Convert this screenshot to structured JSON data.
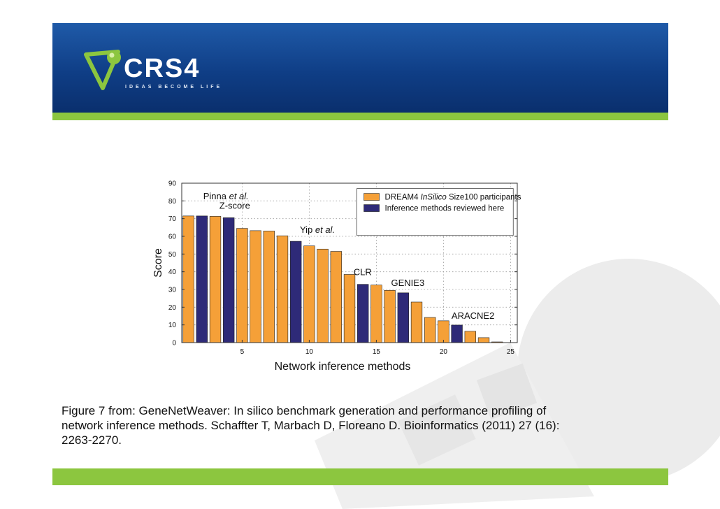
{
  "brand": {
    "logo_text": "CRS4",
    "tagline": "IDEAS BECOME LIFE",
    "colors": {
      "banner": "#124592",
      "green": "#8cc63f",
      "watermark": "#e9e9e9"
    }
  },
  "caption": {
    "lines": [
      "Figure 7 from: GeneNetWeaver: In silico benchmark generation and performance profiling of",
      "network inference methods. Schaffter T, Marbach D, Floreano D. Bioinformatics (2011) 27 (16):",
      "2263-2270."
    ]
  },
  "chart_data": {
    "type": "bar",
    "xlabel": "Network inference methods",
    "ylabel": "Score",
    "xlim": [
      0.5,
      25.5
    ],
    "ylim": [
      0,
      90
    ],
    "xticks": [
      5,
      10,
      15,
      20,
      25
    ],
    "yticks": [
      0,
      10,
      20,
      30,
      40,
      50,
      60,
      70,
      80,
      90
    ],
    "grid": "dotted",
    "legend_position": "top-right",
    "series": [
      {
        "name": "DREAM4 InSilico Size100 participants",
        "color": "#f5a038"
      },
      {
        "name": "Inference methods reviewed here",
        "color": "#2e2a78"
      }
    ],
    "legend": [
      {
        "parts": [
          "DREAM4 ",
          "InSilico",
          " Size100 participants"
        ],
        "italic": [
          false,
          true,
          false
        ],
        "series": 0
      },
      {
        "parts": [
          "Inference methods reviewed here"
        ],
        "italic": [
          false
        ],
        "series": 1
      }
    ],
    "bars": [
      {
        "x": 1,
        "value": 71.5,
        "series": 0
      },
      {
        "x": 2,
        "value": 71.5,
        "series": 1
      },
      {
        "x": 3,
        "value": 71.3,
        "series": 0
      },
      {
        "x": 4,
        "value": 70.5,
        "series": 1
      },
      {
        "x": 5,
        "value": 64.5,
        "series": 0
      },
      {
        "x": 6,
        "value": 63.2,
        "series": 0
      },
      {
        "x": 7,
        "value": 63.0,
        "series": 0
      },
      {
        "x": 8,
        "value": 60.3,
        "series": 0
      },
      {
        "x": 9,
        "value": 57.2,
        "series": 1
      },
      {
        "x": 10,
        "value": 54.6,
        "series": 0
      },
      {
        "x": 11,
        "value": 52.8,
        "series": 0
      },
      {
        "x": 12,
        "value": 51.5,
        "series": 0
      },
      {
        "x": 13,
        "value": 38.5,
        "series": 0
      },
      {
        "x": 14,
        "value": 32.9,
        "series": 1
      },
      {
        "x": 15,
        "value": 32.5,
        "series": 0
      },
      {
        "x": 16,
        "value": 29.5,
        "series": 0
      },
      {
        "x": 17,
        "value": 28.1,
        "series": 1
      },
      {
        "x": 18,
        "value": 22.9,
        "series": 0
      },
      {
        "x": 19,
        "value": 14.2,
        "series": 0
      },
      {
        "x": 20,
        "value": 12.3,
        "series": 0
      },
      {
        "x": 21,
        "value": 9.9,
        "series": 1
      },
      {
        "x": 22,
        "value": 6.4,
        "series": 0
      },
      {
        "x": 23,
        "value": 2.8,
        "series": 0
      },
      {
        "x": 24,
        "value": 0.4,
        "series": 0
      }
    ],
    "annotations": [
      {
        "parts": [
          "Pinna ",
          "et al."
        ],
        "italic": [
          false,
          true
        ],
        "x": 2.1,
        "y": 81
      },
      {
        "parts": [
          "Z-score"
        ],
        "italic": [
          false
        ],
        "x": 3.3,
        "y": 75.5
      },
      {
        "parts": [
          "Yip ",
          "et al."
        ],
        "italic": [
          false,
          true
        ],
        "x": 9.3,
        "y": 62
      },
      {
        "parts": [
          "CLR"
        ],
        "italic": [
          false
        ],
        "x": 13.3,
        "y": 38
      },
      {
        "parts": [
          "GENIE3"
        ],
        "italic": [
          false
        ],
        "x": 16.1,
        "y": 32
      },
      {
        "parts": [
          "ARACNE2"
        ],
        "italic": [
          false
        ],
        "x": 20.6,
        "y": 13.5
      }
    ]
  }
}
